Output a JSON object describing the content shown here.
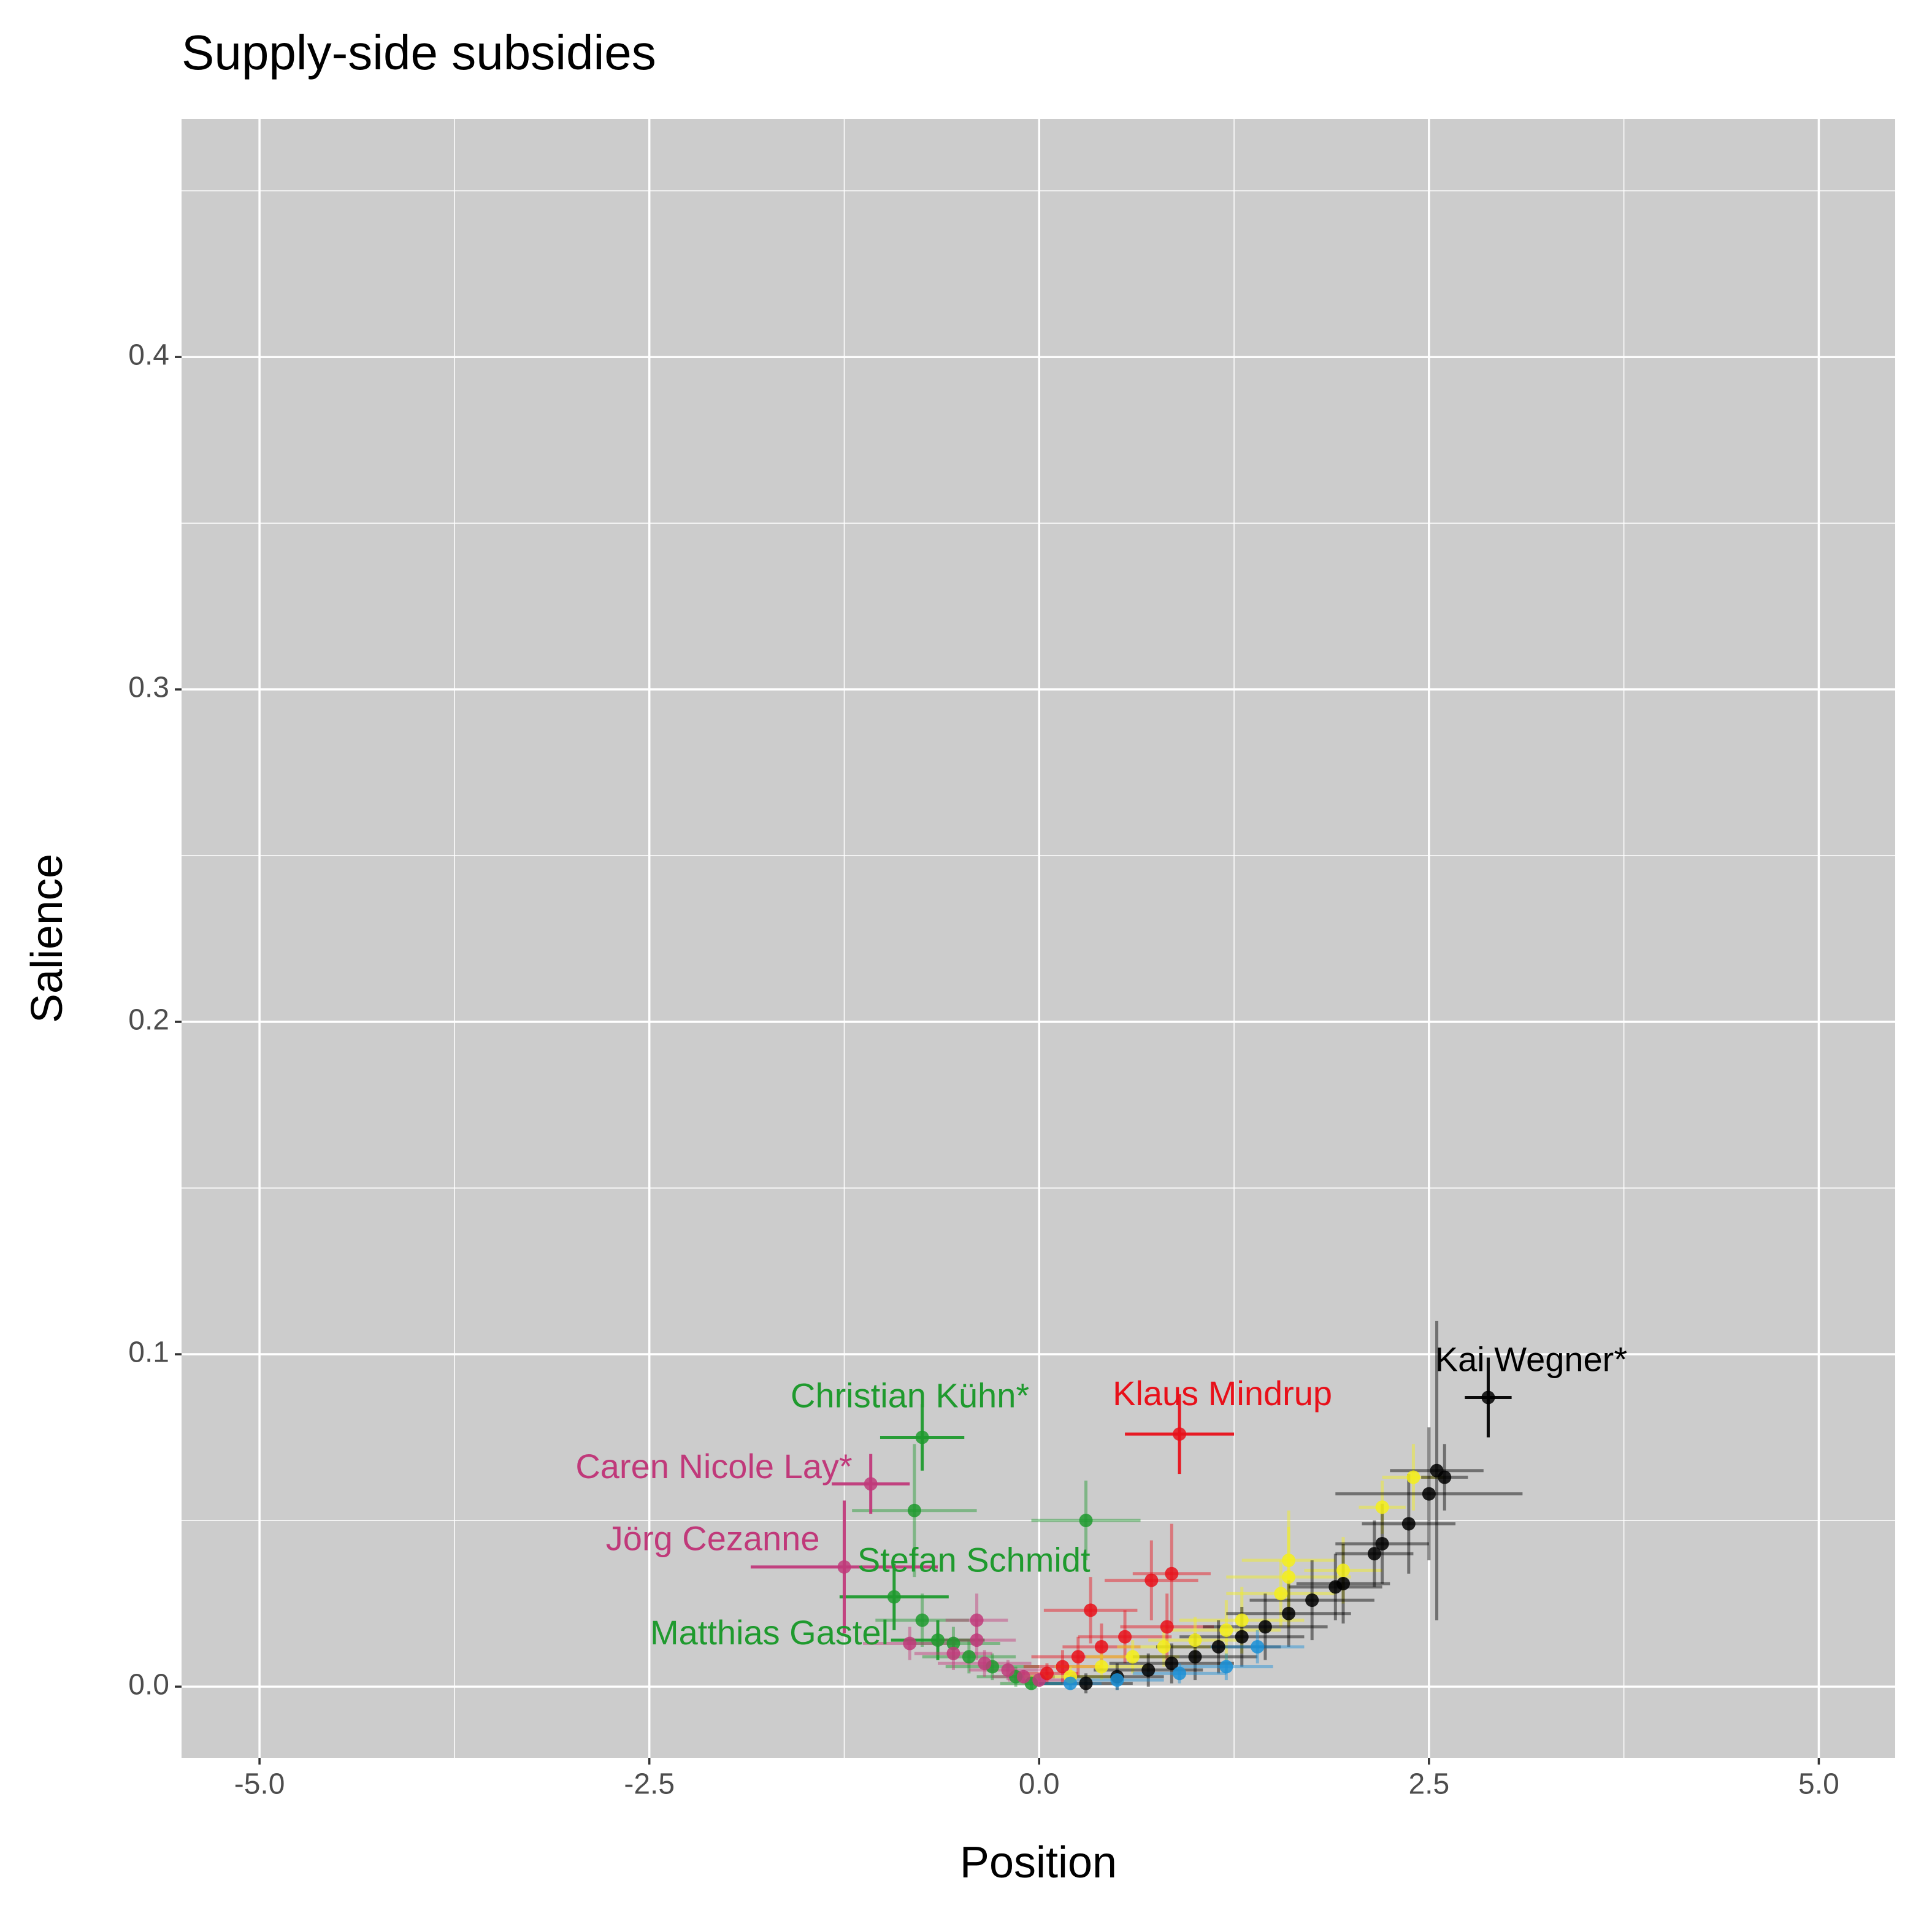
{
  "chart_data": {
    "type": "scatter",
    "title": "Supply-side subsidies",
    "x_label": "Position",
    "y_label": "Salience",
    "xlim": [
      -5.5,
      5.49
    ],
    "ylim": [
      -0.0214,
      0.4716
    ],
    "xticks": [
      {
        "value": -5,
        "label": "-5.0"
      },
      -2.5,
      {
        "value": 0,
        "label": "0.0"
      },
      2.5,
      {
        "value": 5,
        "label": "5.0"
      }
    ],
    "yticks": [
      {
        "value": 0,
        "label": "0.0"
      },
      0.1,
      0.2,
      0.3,
      0.4
    ],
    "grid": true,
    "series": [
      {
        "color": "#1f9a2e",
        "x": [
          -0.75,
          -0.8,
          0.3,
          -0.93,
          -0.75,
          -0.65,
          -0.55,
          -0.45,
          -0.3,
          -0.15,
          -0.05
        ],
        "values": [
          0.075,
          0.053,
          0.05,
          0.027,
          0.02,
          0.014,
          0.013,
          0.009,
          0.006,
          0.003,
          0.001
        ],
        "xerr": [
          0.27,
          0.4,
          0.35,
          0.35,
          0.3,
          0.3,
          0.3,
          0.3,
          0.3,
          0.25,
          0.2
        ],
        "yerr": [
          0.01,
          0.02,
          0.012,
          0.01,
          0.008,
          0.006,
          0.005,
          0.005,
          0.004,
          0.003,
          0.002
        ],
        "labels": [
          "Christian Kühn*",
          null,
          null,
          "Stefan Schmidt",
          null,
          "Matthias Gastel",
          null,
          null,
          null,
          null,
          null
        ]
      },
      {
        "color": "#c0397a",
        "x": [
          -1.08,
          -1.25,
          -0.4,
          -0.4,
          -0.83,
          -0.55,
          -0.35,
          -0.2,
          -0.1,
          0
        ],
        "values": [
          0.061,
          0.036,
          0.02,
          0.014,
          0.013,
          0.01,
          0.007,
          0.005,
          0.003,
          0.002
        ],
        "xerr": [
          0.25,
          0.6,
          0.2,
          0.25,
          0.3,
          0.25,
          0.3,
          0.25,
          0.2,
          0.2
        ],
        "yerr": [
          0.009,
          0.02,
          0.008,
          0.006,
          0.005,
          0.005,
          0.004,
          0.003,
          0.002,
          0.002
        ],
        "labels": [
          "Caren Nicole Lay*",
          "Jörg Cezanne",
          null,
          null,
          null,
          null,
          null,
          null,
          null,
          null
        ]
      },
      {
        "color": "#e8101a",
        "x": [
          0.9,
          0.33,
          0.85,
          0.72,
          0.82,
          0.55,
          0.4,
          0.25,
          0.15,
          0.05
        ],
        "values": [
          0.076,
          0.023,
          0.034,
          0.032,
          0.018,
          0.015,
          0.012,
          0.009,
          0.006,
          0.004
        ],
        "xerr": [
          0.35,
          0.3,
          0.25,
          0.3,
          0.3,
          0.3,
          0.25,
          0.3,
          0.25,
          0.2
        ],
        "yerr": [
          0.012,
          0.01,
          0.015,
          0.012,
          0.01,
          0.008,
          0.007,
          0.006,
          0.005,
          0.003
        ],
        "labels": [
          "Klaus Mindrup",
          null,
          null,
          null,
          null,
          null,
          null,
          null,
          null,
          null
        ]
      },
      {
        "color": "#f5ef1a",
        "x": [
          2.4,
          2.2,
          1.6,
          1.95,
          1.6,
          1.55,
          1.3,
          1.2,
          1.0,
          0.8,
          0.6,
          0.4,
          0.2
        ],
        "values": [
          0.063,
          0.054,
          0.038,
          0.035,
          0.033,
          0.028,
          0.02,
          0.017,
          0.014,
          0.012,
          0.009,
          0.006,
          0.003
        ],
        "xerr": [
          0.2,
          0.15,
          0.3,
          0.25,
          0.4,
          0.35,
          0.4,
          0.35,
          0.3,
          0.3,
          0.3,
          0.3,
          0.3
        ],
        "yerr": [
          0.01,
          0.008,
          0.015,
          0.01,
          0.015,
          0.01,
          0.01,
          0.009,
          0.007,
          0.006,
          0.005,
          0.004,
          0.003
        ]
      },
      {
        "color": "#000000",
        "x": [
          2.88,
          2.55,
          2.6,
          2.5,
          2.37,
          2.2,
          2.15,
          1.95,
          1.9,
          1.75,
          1.6,
          1.45,
          1.3,
          1.15,
          1.0,
          0.85,
          0.7,
          0.5,
          0.3
        ],
        "values": [
          0.087,
          0.065,
          0.063,
          0.058,
          0.049,
          0.043,
          0.04,
          0.031,
          0.03,
          0.026,
          0.022,
          0.018,
          0.015,
          0.012,
          0.009,
          0.007,
          0.005,
          0.003,
          0.001
        ],
        "xerr": [
          0.15,
          0.3,
          0.15,
          0.6,
          0.3,
          0.3,
          0.25,
          0.3,
          0.3,
          0.4,
          0.4,
          0.4,
          0.4,
          0.4,
          0.4,
          0.4,
          0.35,
          0.3,
          0.3
        ],
        "yerr": [
          0.012,
          0.045,
          0.01,
          0.02,
          0.015,
          0.012,
          0.01,
          0.012,
          0.01,
          0.012,
          0.01,
          0.01,
          0.009,
          0.008,
          0.007,
          0.006,
          0.005,
          0.004,
          0.003
        ],
        "labels": [
          "Kai Wegner*",
          null,
          null,
          null,
          null,
          null,
          null,
          null,
          null,
          null,
          null,
          null,
          null,
          null,
          null,
          null,
          null,
          null,
          null
        ]
      },
      {
        "color": "#1a8fd6",
        "x": [
          0.2,
          0.5,
          0.9,
          1.2,
          1.4
        ],
        "values": [
          0.001,
          0.002,
          0.004,
          0.006,
          0.012
        ],
        "xerr": [
          0.2,
          0.3,
          0.3,
          0.3,
          0.3
        ],
        "yerr": [
          0.002,
          0.003,
          0.003,
          0.004,
          0.005
        ]
      }
    ]
  }
}
